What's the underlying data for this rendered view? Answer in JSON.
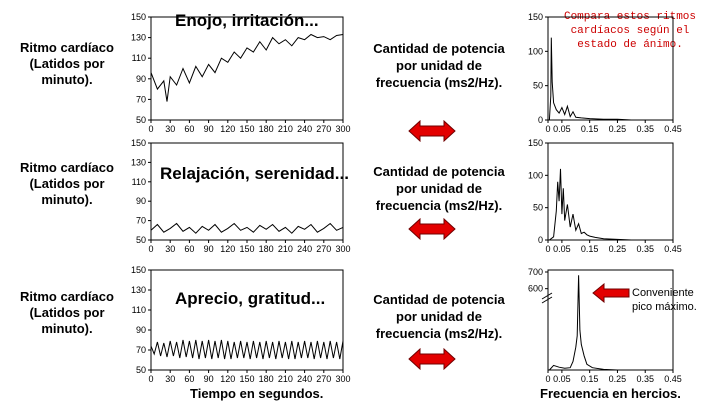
{
  "labels": {
    "heart_rate": "Ritmo cardíaco (Latidos por minuto).",
    "power": "Cantidad de potencia por unidad de frecuencia (ms2/Hz).",
    "time_axis": "Tiempo en segundos.",
    "freq_axis": "Frecuencia en hercios."
  },
  "notes": {
    "compare": "Compara estos ritmos cardíacos según el estado de ánimo.",
    "peak": "Conveniente pico máximo."
  },
  "chart_data": [
    {
      "type": "line",
      "title": "Enojo, irritación...",
      "ylabel": "Ritmo cardíaco (Latidos por minuto).",
      "xlabel": "",
      "xlim": [
        0,
        300
      ],
      "ylim": [
        50,
        150
      ],
      "xticks": [
        "0",
        "30",
        "60",
        "90",
        "120",
        "150",
        "180",
        "210",
        "240",
        "270",
        "300"
      ],
      "yticks": [
        "50",
        "70",
        "90",
        "110",
        "130",
        "150"
      ],
      "x": [
        0,
        10,
        20,
        25,
        30,
        40,
        50,
        60,
        70,
        80,
        90,
        100,
        110,
        120,
        130,
        140,
        150,
        160,
        170,
        180,
        190,
        200,
        210,
        220,
        230,
        240,
        250,
        260,
        270,
        280,
        290,
        300
      ],
      "y": [
        96,
        80,
        88,
        68,
        92,
        84,
        100,
        86,
        102,
        92,
        104,
        96,
        110,
        106,
        116,
        110,
        120,
        116,
        126,
        118,
        130,
        124,
        128,
        122,
        130,
        128,
        133,
        130,
        131,
        128,
        132,
        133
      ]
    },
    {
      "type": "line",
      "title": "Relajación, serenidad...",
      "ylabel": "Ritmo cardíaco (Latidos por minuto).",
      "xlabel": "",
      "xlim": [
        0,
        300
      ],
      "ylim": [
        50,
        150
      ],
      "xticks": [
        "0",
        "30",
        "60",
        "90",
        "120",
        "150",
        "180",
        "210",
        "240",
        "270",
        "300"
      ],
      "yticks": [
        "50",
        "70",
        "90",
        "110",
        "130",
        "150"
      ],
      "x": [
        0,
        10,
        20,
        30,
        40,
        50,
        60,
        70,
        80,
        90,
        100,
        110,
        120,
        130,
        140,
        150,
        160,
        170,
        180,
        190,
        200,
        210,
        220,
        230,
        240,
        250,
        260,
        270,
        280,
        290,
        300
      ],
      "y": [
        60,
        66,
        58,
        62,
        67,
        59,
        63,
        57,
        64,
        60,
        66,
        58,
        62,
        67,
        60,
        63,
        58,
        65,
        61,
        66,
        59,
        63,
        57,
        64,
        61,
        66,
        58,
        62,
        67,
        60,
        63
      ]
    },
    {
      "type": "line",
      "title": "Aprecio, gratitud...",
      "ylabel": "Ritmo cardíaco (Latidos por minuto).",
      "xlabel": "Tiempo en segundos.",
      "xlim": [
        0,
        300
      ],
      "ylim": [
        50,
        150
      ],
      "xticks": [
        "0",
        "30",
        "60",
        "90",
        "120",
        "150",
        "180",
        "210",
        "240",
        "270",
        "300"
      ],
      "yticks": [
        "50",
        "70",
        "90",
        "110",
        "130",
        "150"
      ],
      "x": [
        0,
        5,
        10,
        15,
        20,
        25,
        30,
        35,
        40,
        45,
        50,
        55,
        60,
        65,
        70,
        75,
        80,
        85,
        90,
        95,
        100,
        105,
        110,
        115,
        120,
        125,
        130,
        135,
        140,
        145,
        150,
        155,
        160,
        165,
        170,
        175,
        180,
        185,
        190,
        195,
        200,
        205,
        210,
        215,
        220,
        225,
        230,
        235,
        240,
        245,
        250,
        255,
        260,
        265,
        270,
        275,
        280,
        285,
        290,
        295,
        300
      ],
      "y": [
        74,
        66,
        78,
        64,
        77,
        63,
        79,
        64,
        78,
        62,
        80,
        63,
        79,
        62,
        80,
        61,
        79,
        62,
        80,
        61,
        79,
        62,
        80,
        61,
        79,
        61,
        78,
        62,
        79,
        62,
        78,
        61,
        79,
        62,
        78,
        61,
        79,
        62,
        78,
        61,
        79,
        62,
        78,
        61,
        79,
        61,
        78,
        62,
        79,
        62,
        78,
        61,
        79,
        62,
        78,
        61,
        79,
        62,
        78,
        61,
        79
      ]
    },
    {
      "type": "line",
      "title": "",
      "ylabel": "Cantidad de potencia por unidad de frecuencia (ms2/Hz).",
      "xlabel": "",
      "xlim": [
        0,
        0.45
      ],
      "ylim": [
        0,
        150
      ],
      "xticks": [
        "0",
        "0.05",
        "0.15",
        "0.25",
        "0.35",
        "0.45"
      ],
      "yticks": [
        "0",
        "50",
        "100",
        "150"
      ],
      "x": [
        0.005,
        0.01,
        0.012,
        0.015,
        0.02,
        0.03,
        0.04,
        0.05,
        0.06,
        0.07,
        0.08,
        0.09,
        0.1,
        0.12,
        0.15,
        0.2,
        0.25,
        0.3,
        0.35,
        0.4,
        0.45
      ],
      "y": [
        0,
        35,
        120,
        55,
        25,
        15,
        10,
        18,
        8,
        20,
        5,
        12,
        4,
        3,
        2,
        1,
        1,
        0,
        0,
        0,
        0
      ]
    },
    {
      "type": "line",
      "title": "",
      "ylabel": "Cantidad de potencia por unidad de frecuencia (ms2/Hz).",
      "xlabel": "",
      "xlim": [
        0,
        0.45
      ],
      "ylim": [
        0,
        150
      ],
      "xticks": [
        "0",
        "0.05",
        "0.15",
        "0.25",
        "0.35",
        "0.45"
      ],
      "yticks": [
        "0",
        "50",
        "100",
        "150"
      ],
      "x": [
        0.005,
        0.02,
        0.03,
        0.035,
        0.04,
        0.045,
        0.05,
        0.055,
        0.06,
        0.07,
        0.08,
        0.09,
        0.1,
        0.11,
        0.12,
        0.13,
        0.14,
        0.15,
        0.17,
        0.2,
        0.25,
        0.3,
        0.35,
        0.4,
        0.45
      ],
      "y": [
        0,
        5,
        45,
        90,
        60,
        110,
        40,
        80,
        30,
        55,
        20,
        40,
        15,
        25,
        10,
        12,
        8,
        6,
        4,
        2,
        1,
        0,
        0,
        0,
        0
      ]
    },
    {
      "type": "line",
      "title": "",
      "ylabel": "Cantidad de potencia por unidad de frecuencia (ms2/Hz).",
      "xlabel": "Frecuencia en hercios.",
      "xlim": [
        0,
        0.45
      ],
      "ylim": [
        0,
        700
      ],
      "axis_break": [
        130,
        580
      ],
      "xticks": [
        "0",
        "0.05",
        "0.15",
        "0.25",
        "0.35",
        "0.45"
      ],
      "yticks": [
        "600",
        "700"
      ],
      "x": [
        0.005,
        0.02,
        0.04,
        0.06,
        0.08,
        0.09,
        0.1,
        0.105,
        0.11,
        0.115,
        0.12,
        0.13,
        0.14,
        0.16,
        0.2,
        0.25,
        0.3,
        0.35,
        0.4,
        0.45
      ],
      "y": [
        0,
        8,
        5,
        3,
        4,
        15,
        40,
        60,
        680,
        70,
        45,
        25,
        10,
        4,
        1,
        0,
        0,
        0,
        0,
        0
      ]
    }
  ]
}
